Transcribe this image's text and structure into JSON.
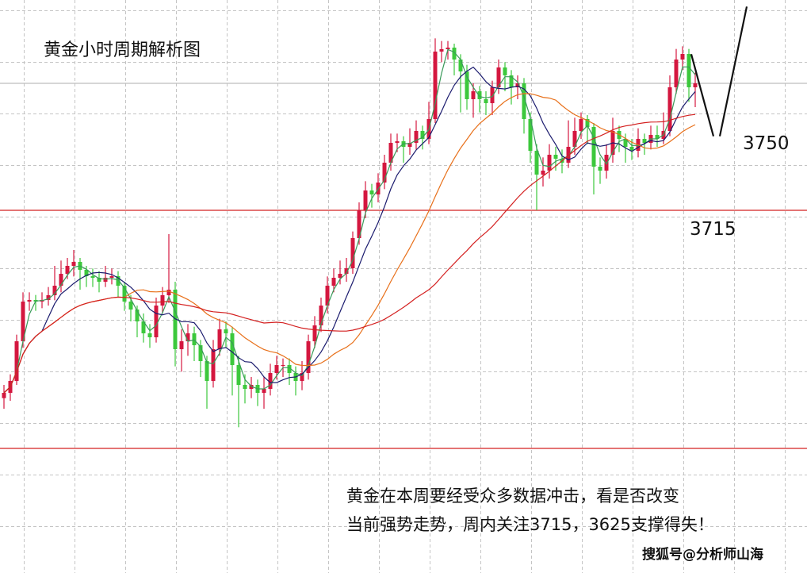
{
  "title": "黄金小时周期解析图",
  "labels": {
    "level_a": "3750",
    "level_b": "3715"
  },
  "note": {
    "line1": "黄金在本周要经受众多数据冲击，看是否改变",
    "line2": "当前强势走势，周内关注3715，3625支撑得失！"
  },
  "watermark": "搜狐号@分析师山海",
  "chart_data": {
    "type": "candlestick",
    "title": "黄金小时周期解析图",
    "grid": true,
    "colors": {
      "up": "#d4173f",
      "down": "#3cc83c",
      "ma_fast": "#3a9a5a",
      "ma_mid": "#1b1b6e",
      "ma_slow": "#e8701a",
      "ma_long": "#d42020",
      "level_line": "#d42020",
      "price_line": "#bdbdbd",
      "projection": "#111111"
    },
    "horizontal_lines": [
      3715,
      3625
    ],
    "price_line": 3763.0,
    "projection_path": [
      3774,
      3743,
      3743,
      3792
    ],
    "candles": [
      [
        3644.0,
        3649,
        3640,
        3646.0
      ],
      [
        3646.0,
        3653,
        3643,
        3650.5
      ],
      [
        3650.5,
        3668,
        3649,
        3665.5
      ],
      [
        3665.5,
        3684,
        3663,
        3680.5
      ],
      [
        3680.5,
        3684,
        3677,
        3681.1
      ],
      [
        3681.1,
        3683,
        3677,
        3680.5
      ],
      [
        3680.5,
        3684,
        3678,
        3681.1
      ],
      [
        3681.1,
        3686,
        3679,
        3682.9
      ],
      [
        3682.9,
        3694,
        3681,
        3686.5
      ],
      [
        3686.5,
        3696,
        3684,
        3691.0
      ],
      [
        3691.0,
        3697,
        3689,
        3694.0
      ],
      [
        3694.0,
        3700,
        3690,
        3695.5
      ],
      [
        3695.5,
        3697,
        3685,
        3692.5
      ],
      [
        3692.5,
        3694,
        3686,
        3690.1
      ],
      [
        3690.1,
        3693,
        3686,
        3689.5
      ],
      [
        3689.5,
        3692,
        3684,
        3688.0
      ],
      [
        3688.0,
        3694,
        3686,
        3689.5
      ],
      [
        3689.5,
        3693,
        3687,
        3690.1
      ],
      [
        3690.1,
        3692,
        3682,
        3686.5
      ],
      [
        3686.5,
        3688,
        3677,
        3680.5
      ],
      [
        3680.5,
        3683,
        3673,
        3677.5
      ],
      [
        3677.5,
        3679,
        3667,
        3673.0
      ],
      [
        3673.0,
        3676,
        3665,
        3668.5
      ],
      [
        3668.5,
        3672,
        3663,
        3667.0
      ],
      [
        3667.0,
        3682,
        3665,
        3679.0
      ],
      [
        3679.0,
        3686,
        3676,
        3682.9
      ],
      [
        3682.9,
        3706,
        3680,
        3685.0
      ],
      [
        3685.0,
        3688,
        3656,
        3662.5
      ],
      [
        3662.5,
        3670,
        3654,
        3665.5
      ],
      [
        3665.5,
        3672,
        3660,
        3668.5
      ],
      [
        3668.5,
        3671,
        3658,
        3664.0
      ],
      [
        3664.0,
        3666,
        3652,
        3658.0
      ],
      [
        3658.0,
        3660,
        3640,
        3650.5
      ],
      [
        3650.5,
        3666,
        3648,
        3662.5
      ],
      [
        3662.5,
        3674,
        3660,
        3670.0
      ],
      [
        3670.0,
        3673,
        3663,
        3668.5
      ],
      [
        3668.5,
        3671,
        3645,
        3656.5
      ],
      [
        3656.5,
        3660,
        3633,
        3649.0
      ],
      [
        3649.0,
        3653,
        3642,
        3647.5
      ],
      [
        3647.5,
        3652,
        3644,
        3649.0
      ],
      [
        3649.0,
        3651,
        3641,
        3646.0
      ],
      [
        3646.0,
        3652,
        3640,
        3647.5
      ],
      [
        3647.5,
        3657,
        3645,
        3653.5
      ],
      [
        3653.5,
        3660,
        3651,
        3656.5
      ],
      [
        3656.5,
        3659,
        3652,
        3656.5
      ],
      [
        3656.5,
        3659,
        3649,
        3653.5
      ],
      [
        3653.5,
        3656,
        3645,
        3650.5
      ],
      [
        3650.5,
        3658,
        3647,
        3653.5
      ],
      [
        3653.5,
        3668,
        3651,
        3665.5
      ],
      [
        3665.5,
        3675,
        3663,
        3671.5
      ],
      [
        3671.5,
        3682,
        3669,
        3679.0
      ],
      [
        3679.0,
        3690,
        3676,
        3686.5
      ],
      [
        3686.5,
        3693,
        3684,
        3689.5
      ],
      [
        3689.5,
        3696,
        3687,
        3691.0
      ],
      [
        3691.0,
        3697,
        3688,
        3693.1
      ],
      [
        3693.1,
        3707,
        3691,
        3704.5
      ],
      [
        3704.5,
        3718,
        3702,
        3715.0
      ],
      [
        3715.0,
        3726,
        3712,
        3722.5
      ],
      [
        3722.5,
        3725,
        3716,
        3721.0
      ],
      [
        3721.0,
        3729,
        3718,
        3725.5
      ],
      [
        3725.5,
        3736,
        3723,
        3733.0
      ],
      [
        3733.0,
        3744,
        3730,
        3740.5
      ],
      [
        3740.5,
        3744,
        3737,
        3741.1
      ],
      [
        3741.1,
        3743,
        3733,
        3739.0
      ],
      [
        3739.0,
        3746,
        3736,
        3740.5
      ],
      [
        3740.5,
        3749,
        3738,
        3745.0
      ],
      [
        3745.0,
        3747,
        3738,
        3742.0
      ],
      [
        3742.0,
        3756,
        3740,
        3749.5
      ],
      [
        3749.5,
        3780,
        3748,
        3775.0
      ],
      [
        3775.0,
        3779,
        3771,
        3775.9
      ],
      [
        3775.9,
        3779,
        3772,
        3776.5
      ],
      [
        3776.5,
        3778,
        3766,
        3772.0
      ],
      [
        3772.0,
        3774,
        3752,
        3767.5
      ],
      [
        3767.5,
        3770,
        3753,
        3757.0
      ],
      [
        3757.0,
        3763,
        3750,
        3760.0
      ],
      [
        3760.0,
        3762,
        3752,
        3757.0
      ],
      [
        3757.0,
        3760,
        3751,
        3755.5
      ],
      [
        3755.5,
        3764,
        3751,
        3761.5
      ],
      [
        3761.5,
        3772,
        3759,
        3769.0
      ],
      [
        3769.0,
        3771,
        3760,
        3766.0
      ],
      [
        3766.0,
        3768,
        3755,
        3761.5
      ],
      [
        3761.5,
        3766,
        3757,
        3763.0
      ],
      [
        3763.0,
        3765,
        3744,
        3749.5
      ],
      [
        3749.5,
        3752,
        3733,
        3737.5
      ],
      [
        3737.5,
        3740,
        3715,
        3728.5
      ],
      [
        3728.5,
        3735,
        3724,
        3730.0
      ],
      [
        3730.0,
        3740,
        3727,
        3736.0
      ],
      [
        3736.0,
        3739,
        3730,
        3734.5
      ],
      [
        3734.5,
        3738,
        3729,
        3733.0
      ],
      [
        3733.0,
        3749,
        3731,
        3739.0
      ],
      [
        3739.0,
        3750,
        3736,
        3745.0
      ],
      [
        3745.0,
        3752,
        3742,
        3749.5
      ],
      [
        3749.5,
        3751,
        3740,
        3746.5
      ],
      [
        3746.5,
        3748,
        3721,
        3731.5
      ],
      [
        3731.5,
        3735,
        3725,
        3730.0
      ],
      [
        3730.0,
        3740,
        3727,
        3736.0
      ],
      [
        3736.0,
        3750,
        3733,
        3745.0
      ],
      [
        3745.0,
        3747,
        3737,
        3742.0
      ],
      [
        3742.0,
        3744,
        3733,
        3739.0
      ],
      [
        3739.0,
        3742,
        3734,
        3737.5
      ],
      [
        3737.5,
        3746,
        3735,
        3742.0
      ],
      [
        3742.0,
        3744,
        3736,
        3740.5
      ],
      [
        3740.5,
        3747,
        3738,
        3743.5
      ],
      [
        3743.5,
        3747,
        3739,
        3742.0
      ],
      [
        3742.0,
        3752,
        3740,
        3745.0
      ],
      [
        3745.0,
        3766,
        3743,
        3761.5
      ],
      [
        3761.5,
        3776,
        3759,
        3772.0
      ],
      [
        3772.0,
        3777,
        3768,
        3774.1
      ],
      [
        3774.1,
        3776,
        3756,
        3761.5
      ],
      [
        3761.5,
        3767,
        3754,
        3763.0
      ]
    ]
  }
}
